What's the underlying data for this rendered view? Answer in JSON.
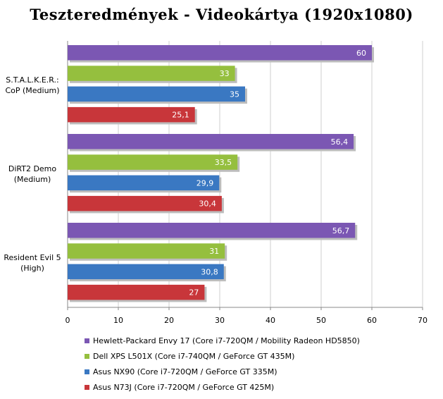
{
  "chart_data": {
    "type": "bar",
    "orientation": "horizontal",
    "title": "Teszteredmények - Videokártya (1920x1080)",
    "categories": [
      "S.T.A.L.K.E.R.: CoP (Medium)",
      "DiRT2 Demo (Medium)",
      "Resident Evil 5 (High)"
    ],
    "category_lines": [
      [
        "S.T.A.L.K.E.R.:",
        "CoP (Medium)"
      ],
      [
        "DiRT2 Demo",
        "(Medium)"
      ],
      [
        "Resident Evil 5",
        "(High)"
      ]
    ],
    "series": [
      {
        "name": "Hewlett-Packard Envy 17 (Core i7-720QM / Mobility Radeon HD5850)",
        "color": "#7b57b3",
        "values": [
          60,
          56.4,
          56.7
        ],
        "labels": [
          "60",
          "56,4",
          "56,7"
        ]
      },
      {
        "name": "Dell XPS L501X (Core i7-740QM / GeForce GT 435M)",
        "color": "#95bf3e",
        "values": [
          33,
          33.5,
          31
        ],
        "labels": [
          "33",
          "33,5",
          "31"
        ]
      },
      {
        "name": "Asus NX90 (Core i7-720QM / GeForce GT 335M)",
        "color": "#3a78c2",
        "values": [
          35,
          29.9,
          30.8
        ],
        "labels": [
          "35",
          "29,9",
          "30,8"
        ]
      },
      {
        "name": "Asus N73J (Core i7-720QM / GeForce GT 425M)",
        "color": "#c8363a",
        "values": [
          25.1,
          30.4,
          27
        ],
        "labels": [
          "25,1",
          "30,4",
          "27"
        ]
      }
    ],
    "xlim": [
      0,
      70
    ],
    "xticks": [
      "0",
      "10",
      "20",
      "30",
      "40",
      "50",
      "60",
      "70"
    ],
    "grid": true,
    "legend_position": "bottom"
  }
}
